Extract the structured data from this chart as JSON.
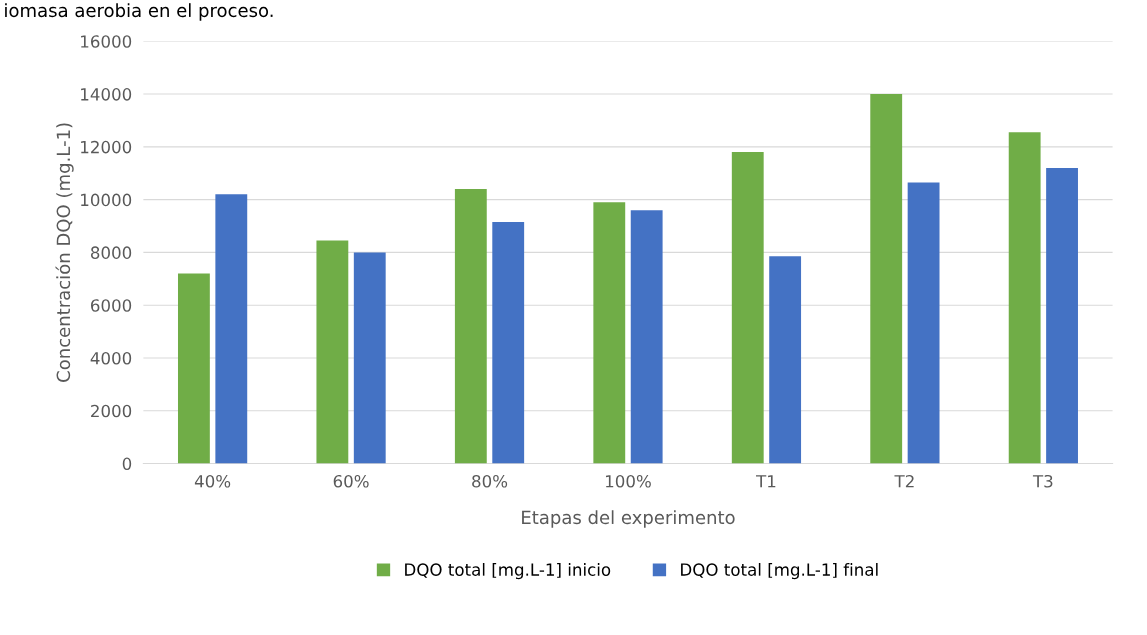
{
  "chart_data": {
    "type": "bar",
    "annotations": [
      "iomasa aerobia en el proceso."
    ],
    "xlabel": "Etapas del experimento",
    "ylabel": "Concentración DQO (mg.L-1)",
    "categories": [
      "40%",
      "60%",
      "80%",
      "100%",
      "T1",
      "T2",
      "T3"
    ],
    "series": [
      {
        "name": "DQO total [mg.L-1] inicio",
        "color": "#70ad47",
        "values": [
          7200,
          8450,
          10400,
          9900,
          11800,
          14000,
          12550
        ]
      },
      {
        "name": "DQO total [mg.L-1] final",
        "color": "#4472c4",
        "values": [
          10200,
          8000,
          9150,
          9600,
          7850,
          10650,
          11200
        ]
      }
    ],
    "ylim": [
      0,
      16000
    ],
    "yticks": [
      0,
      2000,
      4000,
      6000,
      8000,
      10000,
      12000,
      14000,
      16000
    ],
    "grid": "y",
    "legend": "bottom"
  }
}
